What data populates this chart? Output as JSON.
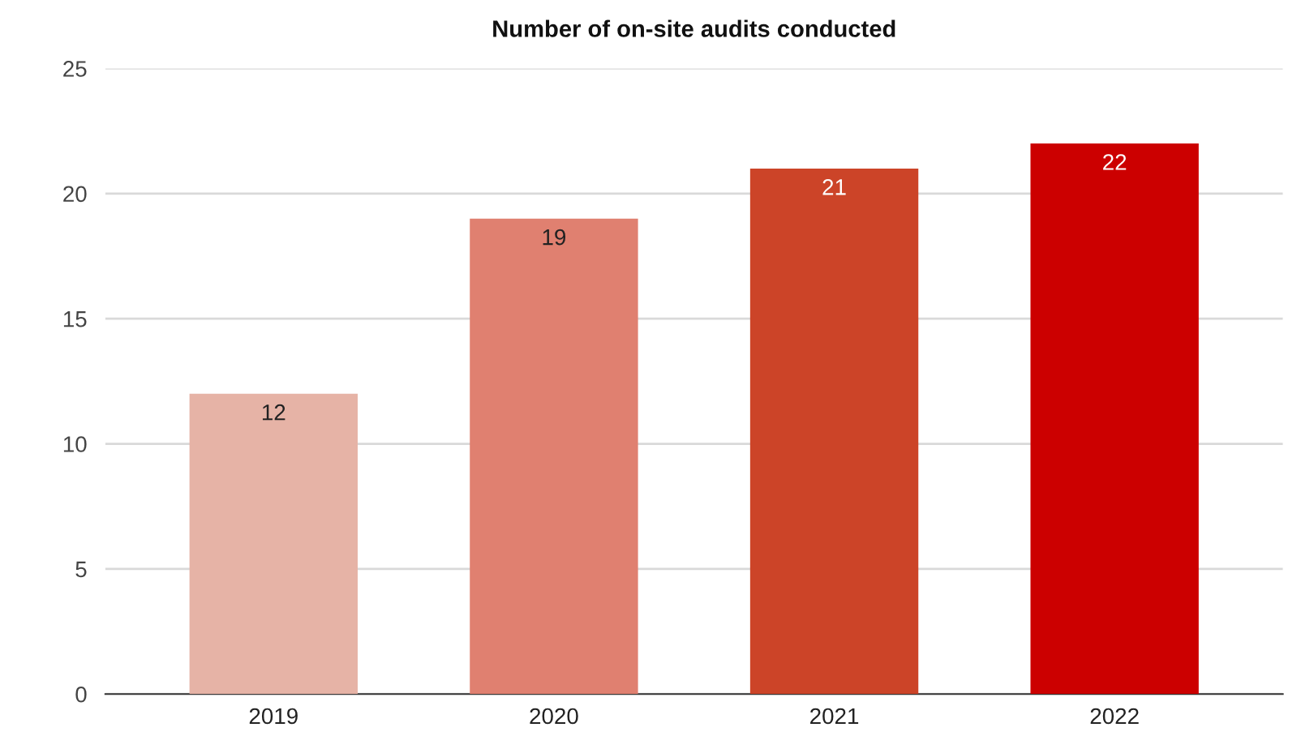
{
  "chart_data": {
    "type": "bar",
    "title": "Number of on-site audits conducted",
    "categories": [
      "2019",
      "2020",
      "2021",
      "2022"
    ],
    "values": [
      12,
      19,
      21,
      22
    ],
    "colors": [
      "#e6b3a6",
      "#e08070",
      "#cc4428",
      "#cc0000"
    ],
    "ylim": [
      0,
      25
    ],
    "yticks": [
      0,
      5,
      10,
      15,
      20,
      25
    ],
    "grid": "y",
    "data_labels": true,
    "legend": false
  }
}
